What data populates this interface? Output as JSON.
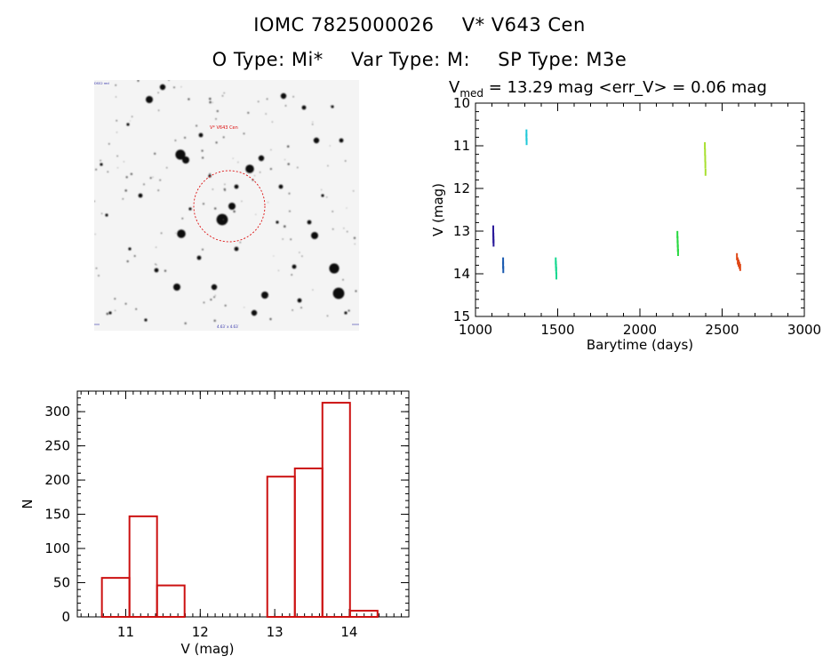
{
  "header": {
    "id_label": "IOMC 7825000026",
    "star_name": "V* V643 Cen",
    "o_type": "O Type: Mi*",
    "var_type": "Var Type: M:",
    "sp_type": "SP Type: M3e"
  },
  "colors": {
    "histogram": "#cc1111",
    "circle": "#dd1111",
    "axis": "#000000"
  },
  "sky_image": {
    "label_top_left": "DSS2 red",
    "label_target": "V* V643 Cen",
    "label_bottom": "4.63′ x 4.63′"
  },
  "chart_data": [
    {
      "type": "scatter",
      "title_prefix": "V",
      "title_sub": "med",
      "title_rest": " = 13.29 mag <err_V> = 0.06 mag",
      "xlabel": "Barytime (days)",
      "ylabel": "V (mag)",
      "xlim": [
        1000,
        3000
      ],
      "ylim": [
        15,
        10
      ],
      "xticks": [
        1000,
        1500,
        2000,
        2500,
        3000
      ],
      "yticks": [
        10,
        11,
        12,
        13,
        14,
        15
      ],
      "series": [
        {
          "name": "s1",
          "color": "#2a1a9a",
          "x": [
            1108,
            1108,
            1109,
            1109,
            1110
          ],
          "y": [
            12.95,
            13.05,
            13.12,
            13.2,
            13.28
          ]
        },
        {
          "name": "s2",
          "color": "#1a5ab0",
          "x": [
            1168,
            1168,
            1169
          ],
          "y": [
            13.7,
            13.8,
            13.9
          ]
        },
        {
          "name": "s3",
          "color": "#20c8d8",
          "x": [
            1310,
            1310,
            1311
          ],
          "y": [
            10.7,
            10.8,
            10.9
          ]
        },
        {
          "name": "s4",
          "color": "#18d890",
          "x": [
            1488,
            1489,
            1490,
            1491,
            1492
          ],
          "y": [
            13.7,
            13.78,
            13.85,
            13.92,
            14.05
          ]
        },
        {
          "name": "s5",
          "color": "#28d840",
          "x": [
            2228,
            2229,
            2230,
            2231,
            2232
          ],
          "y": [
            13.08,
            13.2,
            13.3,
            13.4,
            13.5
          ]
        },
        {
          "name": "s6",
          "color": "#a8e030",
          "x": [
            2395,
            2396,
            2397,
            2398,
            2399
          ],
          "y": [
            11.0,
            11.15,
            11.3,
            11.45,
            11.62
          ]
        },
        {
          "name": "s7",
          "color": "#e04818",
          "x": [
            2590,
            2595,
            2600,
            2605,
            2610
          ],
          "y": [
            13.6,
            13.7,
            13.75,
            13.8,
            13.85
          ]
        }
      ]
    },
    {
      "type": "bar",
      "xlabel": "V (mag)",
      "ylabel": "N",
      "xlim": [
        10.35,
        14.8
      ],
      "ylim": [
        0,
        330
      ],
      "xticks": [
        11,
        12,
        13,
        14
      ],
      "yticks": [
        0,
        50,
        100,
        150,
        200,
        250,
        300
      ],
      "bins": [
        {
          "left": 10.68,
          "right": 11.05,
          "value": 57
        },
        {
          "left": 11.05,
          "right": 11.42,
          "value": 147
        },
        {
          "left": 11.42,
          "right": 11.79,
          "value": 46
        },
        {
          "left": 11.79,
          "right": 12.16,
          "value": 0
        },
        {
          "left": 12.16,
          "right": 12.53,
          "value": 0
        },
        {
          "left": 12.53,
          "right": 12.9,
          "value": 0
        },
        {
          "left": 12.9,
          "right": 13.27,
          "value": 205
        },
        {
          "left": 13.27,
          "right": 13.64,
          "value": 217
        },
        {
          "left": 13.64,
          "right": 14.01,
          "value": 313
        },
        {
          "left": 14.01,
          "right": 14.38,
          "value": 9
        }
      ]
    }
  ]
}
